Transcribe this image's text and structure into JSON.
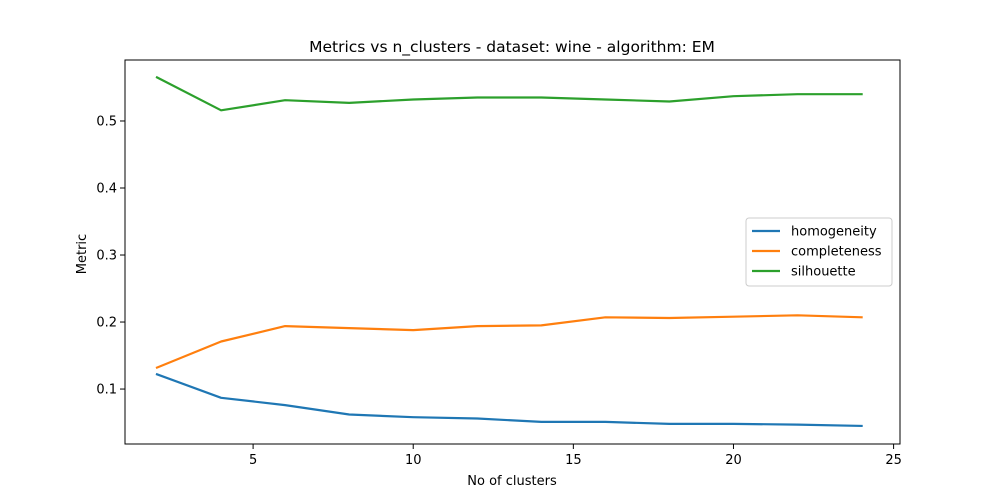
{
  "chart_data": {
    "type": "line",
    "title": "Metrics vs n_clusters - dataset: wine - algorithm: EM",
    "xlabel": "No of clusters",
    "ylabel": "Metric",
    "xlim": [
      1,
      25.2
    ],
    "ylim": [
      0.018,
      0.591
    ],
    "xticks": [
      5,
      10,
      15,
      20,
      25
    ],
    "yticks": [
      0.1,
      0.2,
      0.3,
      0.4,
      0.5
    ],
    "grid": false,
    "legend_position": "center-right",
    "x": [
      2,
      4,
      6,
      8,
      10,
      12,
      14,
      16,
      18,
      20,
      22,
      24
    ],
    "series": [
      {
        "name": "homogeneity",
        "color": "#1f77b4",
        "values": [
          0.122,
          0.087,
          0.076,
          0.062,
          0.058,
          0.056,
          0.051,
          0.051,
          0.048,
          0.048,
          0.047,
          0.045
        ]
      },
      {
        "name": "completeness",
        "color": "#ff7f0e",
        "values": [
          0.132,
          0.171,
          0.194,
          0.191,
          0.188,
          0.194,
          0.195,
          0.207,
          0.206,
          0.208,
          0.21,
          0.207
        ]
      },
      {
        "name": "silhouette",
        "color": "#2ca02c",
        "values": [
          0.565,
          0.516,
          0.531,
          0.527,
          0.532,
          0.535,
          0.535,
          0.532,
          0.529,
          0.537,
          0.54,
          0.54
        ]
      }
    ]
  }
}
